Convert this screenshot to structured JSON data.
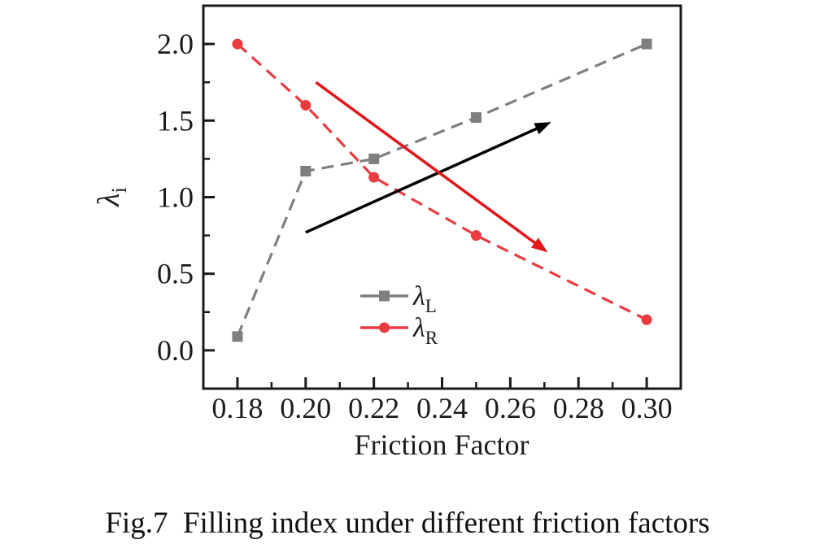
{
  "figure": {
    "caption": "Fig.7  Filling index under different friction factors"
  },
  "chart_data": {
    "type": "line",
    "title": "",
    "xlabel": "Friction Factor",
    "ylabel": {
      "base": "λ",
      "sub": "i"
    },
    "xlim": [
      0.17,
      0.31
    ],
    "ylim": [
      -0.25,
      2.25
    ],
    "grid": false,
    "x_ticks": {
      "major": [
        0.18,
        0.2,
        0.22,
        0.24,
        0.26,
        0.28,
        0.3
      ],
      "labels": [
        "0.18",
        "0.20",
        "0.22",
        "0.24",
        "0.26",
        "0.28",
        "0.30"
      ],
      "minor_step": 0.01
    },
    "y_ticks": {
      "major": [
        0.0,
        0.5,
        1.0,
        1.5,
        2.0
      ],
      "labels": [
        "0.0",
        "0.5",
        "1.0",
        "1.5",
        "2.0"
      ],
      "minor_step": 0.25
    },
    "series": [
      {
        "name": "lambda-L",
        "label_base": "λ",
        "label_sub": "L",
        "color": "#7f7f7f",
        "marker": "square",
        "line_style": "dashed",
        "x": [
          0.18,
          0.2,
          0.22,
          0.25,
          0.3
        ],
        "y": [
          0.09,
          1.17,
          1.25,
          1.52,
          2.0
        ]
      },
      {
        "name": "lambda-R",
        "label_base": "λ",
        "label_sub": "R",
        "color": "#ea3b40",
        "marker": "circle",
        "line_style": "dashed",
        "x": [
          0.18,
          0.2,
          0.22,
          0.25,
          0.3
        ],
        "y": [
          2.0,
          1.6,
          1.13,
          0.75,
          0.2
        ]
      }
    ],
    "legend": {
      "position": "inside-lower-middle"
    },
    "arrows": [
      {
        "name": "increasing-trend-arrow",
        "color": "#000000",
        "from": [
          0.2,
          0.77
        ],
        "to": [
          0.272,
          1.49
        ]
      },
      {
        "name": "decreasing-trend-arrow",
        "color": "#e4161b",
        "from": [
          0.203,
          1.75
        ],
        "to": [
          0.271,
          0.64
        ]
      }
    ]
  }
}
